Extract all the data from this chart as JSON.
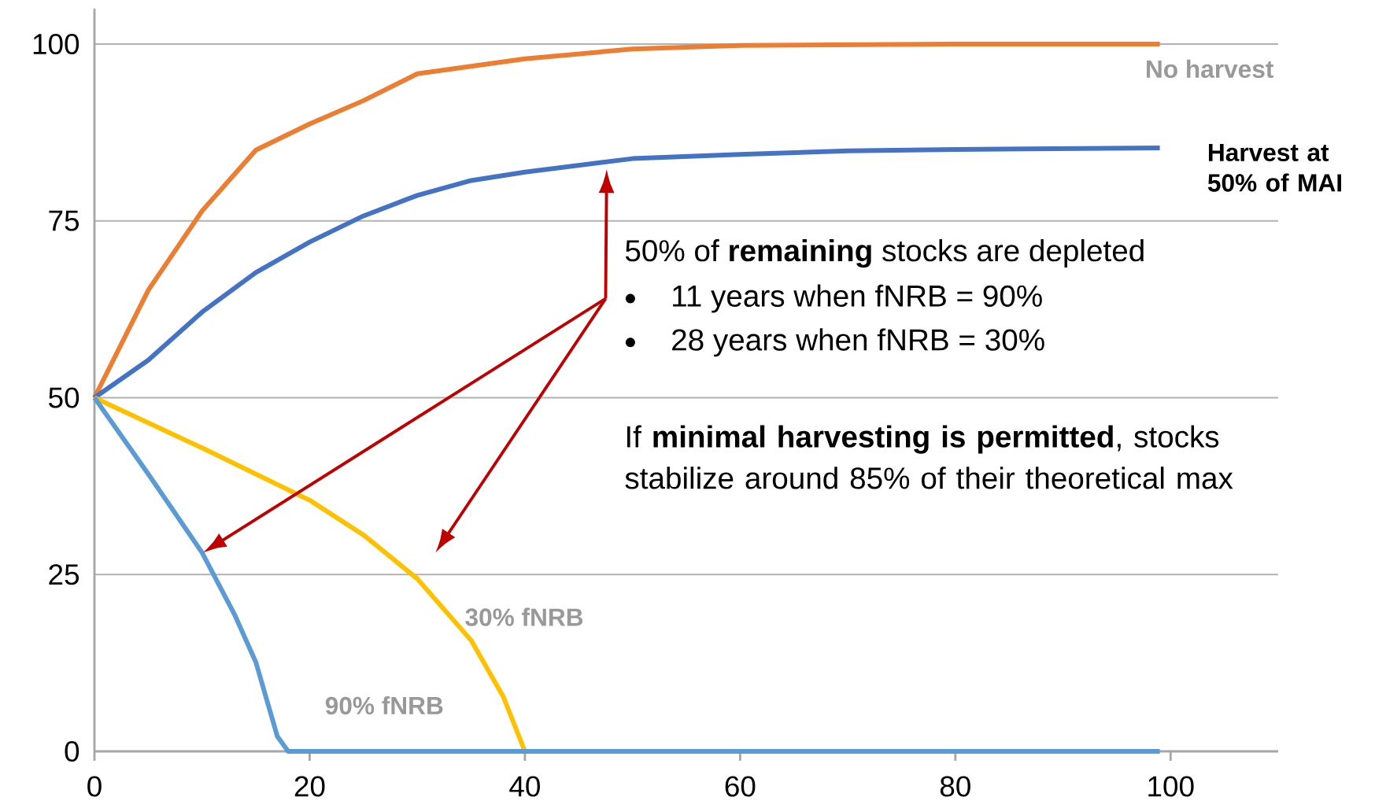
{
  "chart_data": {
    "type": "line",
    "xlim": [
      0,
      110
    ],
    "ylim": [
      0,
      105
    ],
    "xticks": [
      0,
      20,
      40,
      60,
      80,
      100
    ],
    "yticks": [
      0,
      25,
      50,
      75,
      100
    ],
    "grid": "y",
    "marker": "none",
    "line_style": "solid",
    "series": [
      {
        "name": "No harvest",
        "color": "#ed7d31",
        "x": [
          0,
          5,
          10,
          15,
          20,
          25,
          30,
          40,
          50,
          60,
          80,
          99
        ],
        "values": [
          50,
          65.2,
          76.4,
          85,
          88.7,
          92,
          95.8,
          97.9,
          99.3,
          99.8,
          100,
          100
        ]
      },
      {
        "name": "Harvest at 50% of MAI",
        "color": "#4472c4",
        "x": [
          0,
          5,
          10,
          15,
          20,
          25,
          30,
          35,
          40,
          50,
          60,
          70,
          80,
          99
        ],
        "values": [
          50,
          55.3,
          62.1,
          67.7,
          72,
          75.7,
          78.6,
          80.7,
          81.9,
          83.8,
          84.4,
          84.9,
          85.1,
          85.3
        ]
      },
      {
        "name": "30% fNRB",
        "color": "#ffc000",
        "x": [
          0,
          10,
          20,
          25,
          30,
          35,
          38,
          40
        ],
        "values": [
          50,
          42.9,
          35.5,
          30.6,
          24.4,
          15.7,
          7.7,
          0
        ]
      },
      {
        "name": "90% fNRB",
        "color": "#5b9bd5",
        "x": [
          0,
          5,
          10,
          13,
          15,
          17,
          18,
          99
        ],
        "values": [
          50,
          39.2,
          28.1,
          19.4,
          12.6,
          2.1,
          0,
          0
        ]
      }
    ],
    "annotations": [
      "50% of **remaining** stocks are depleted",
      "11 years when fNRB = 90%",
      "28 years when fNRB = 30%",
      "If **minimal harvesting is permitted**, stocks stabilize around 85% of their theoretical max"
    ]
  }
}
